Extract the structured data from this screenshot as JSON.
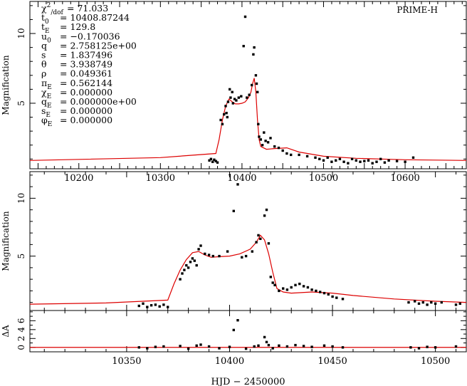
{
  "chart_data": [
    {
      "type": "scatter",
      "panel": "full light curve",
      "label": "PRIME-H",
      "ylabel": "Magnification",
      "xlim": [
        10140,
        10675
      ],
      "ylim": [
        0.3,
        12.3
      ],
      "x_ticks": [
        10200,
        10300,
        10400,
        10500,
        10600
      ],
      "y_ticks": [
        5,
        10
      ],
      "parameters": [
        {
          "name": "χ²/dof",
          "value": "= 71.033"
        },
        {
          "name": "t₀",
          "value": "= 10408.87244"
        },
        {
          "name": "tE",
          "value": "= 129.8"
        },
        {
          "name": "u₀",
          "value": "= −0.170036"
        },
        {
          "name": "q",
          "value": "= 2.758125e+00"
        },
        {
          "name": "s",
          "value": "= 1.837496"
        },
        {
          "name": "θ",
          "value": "= 3.938749"
        },
        {
          "name": "ρ",
          "value": "= 0.049361"
        },
        {
          "name": "πE",
          "value": "= 0.562144"
        },
        {
          "name": "χE",
          "value": "= 0.000000"
        },
        {
          "name": "qE",
          "value": "= 0.000000e+00"
        },
        {
          "name": "sE",
          "value": "= 0.000000"
        },
        {
          "name": "φE",
          "value": "= 0.000000"
        }
      ],
      "model_curve": {
        "x": [
          10140,
          10300,
          10368,
          10372,
          10376,
          10380,
          10384,
          10388,
          10392,
          10396,
          10400,
          10404,
          10408,
          10411,
          10413,
          10415,
          10417,
          10419,
          10421,
          10423,
          10430,
          10440,
          10455,
          10470,
          10500,
          10540,
          10600,
          10675
        ],
        "y": [
          0.9,
          1.1,
          1.4,
          2.4,
          3.8,
          4.8,
          5.3,
          5.1,
          4.95,
          4.95,
          5.0,
          5.1,
          5.4,
          5.8,
          6.4,
          6.8,
          5.8,
          3.8,
          2.4,
          1.9,
          1.7,
          1.75,
          1.8,
          1.5,
          1.2,
          1.05,
          0.95,
          0.9
        ]
      },
      "points": {
        "x": [
          10360,
          10362,
          10364,
          10366,
          10368,
          10370,
          10374,
          10376,
          10378,
          10380,
          10381,
          10382,
          10383,
          10385,
          10386,
          10388,
          10389,
          10391,
          10393,
          10396,
          10399,
          10402,
          10404,
          10406,
          10409,
          10412,
          10414,
          10415,
          10417,
          10418,
          10419,
          10420,
          10421,
          10423,
          10425,
          10427,
          10429,
          10432,
          10435,
          10440,
          10445,
          10450,
          10455,
          10460,
          10470,
          10480,
          10490,
          10495,
          10500,
          10505,
          10510,
          10515,
          10520,
          10525,
          10530,
          10535,
          10540,
          10545,
          10550,
          10555,
          10560,
          10565,
          10570,
          10575,
          10580,
          10590,
          10600,
          10610
        ],
        "y": [
          0.9,
          1.0,
          0.8,
          0.95,
          0.85,
          0.75,
          3.8,
          3.5,
          4.2,
          4.8,
          4.3,
          4.0,
          5.1,
          6.0,
          5.4,
          5.8,
          5.0,
          5.3,
          5.2,
          5.4,
          5.5,
          9.1,
          11.2,
          5.4,
          5.6,
          6.3,
          8.5,
          9.0,
          7.0,
          6.4,
          5.8,
          3.5,
          2.6,
          2.4,
          2.0,
          2.9,
          2.3,
          2.2,
          2.5,
          1.9,
          1.8,
          1.6,
          1.4,
          1.3,
          1.3,
          1.2,
          1.1,
          1.0,
          0.9,
          1.1,
          0.8,
          0.9,
          1.0,
          0.8,
          0.7,
          1.0,
          0.9,
          0.8,
          0.85,
          0.9,
          0.7,
          0.8,
          1.0,
          0.75,
          0.9,
          0.85,
          0.8,
          1.1
        ]
      }
    },
    {
      "type": "scatter",
      "panel": "zoom",
      "ylabel": "Magnification",
      "xlim": [
        10303,
        10515
      ],
      "ylim": [
        0.3,
        12.3
      ],
      "y_ticks": [
        5,
        10
      ],
      "model_curve": {
        "x": [
          10303,
          10340,
          10370,
          10373,
          10376,
          10379,
          10382,
          10385,
          10388,
          10391,
          10395,
          10400,
          10405,
          10410,
          10413,
          10415,
          10417,
          10419,
          10421,
          10423,
          10426,
          10430,
          10440,
          10450,
          10460,
          10480,
          10500,
          10515
        ],
        "y": [
          0.85,
          0.95,
          1.2,
          2.6,
          3.8,
          4.7,
          5.3,
          5.4,
          5.1,
          4.9,
          4.95,
          5.0,
          5.2,
          5.6,
          6.2,
          6.8,
          6.4,
          5.2,
          3.6,
          2.2,
          1.9,
          1.8,
          1.9,
          1.8,
          1.6,
          1.3,
          1.1,
          1.0
        ]
      },
      "points": {
        "x": [
          10356,
          10358,
          10360,
          10362,
          10364,
          10366,
          10368,
          10370,
          10376,
          10377,
          10378,
          10379,
          10380,
          10381,
          10382,
          10383,
          10384,
          10385,
          10386,
          10388,
          10390,
          10392,
          10395,
          10399,
          10402,
          10404,
          10406,
          10408,
          10411,
          10413,
          10414,
          10415,
          10417,
          10418,
          10419,
          10420,
          10421,
          10422,
          10424,
          10426,
          10428,
          10430,
          10432,
          10434,
          10436,
          10438,
          10440,
          10442,
          10444,
          10446,
          10448,
          10450,
          10452,
          10455,
          10487,
          10490,
          10492,
          10494,
          10496,
          10498,
          10500,
          10503,
          10510,
          10512
        ],
        "y": [
          0.7,
          0.9,
          0.6,
          0.75,
          0.8,
          0.65,
          0.8,
          0.6,
          3.0,
          3.5,
          3.8,
          4.2,
          4.0,
          4.5,
          4.8,
          4.6,
          4.2,
          5.6,
          5.9,
          5.2,
          5.1,
          5.0,
          5.0,
          5.4,
          8.9,
          11.2,
          4.9,
          5.0,
          5.4,
          6.2,
          6.8,
          6.5,
          8.5,
          9.0,
          6.1,
          3.2,
          2.7,
          2.5,
          2.0,
          2.2,
          2.1,
          2.3,
          2.5,
          2.6,
          2.4,
          2.3,
          2.1,
          2.0,
          1.9,
          1.8,
          1.7,
          1.5,
          1.4,
          1.3,
          1.0,
          1.1,
          0.9,
          1.0,
          0.8,
          1.0,
          0.9,
          1.0,
          0.8,
          0.9
        ]
      }
    },
    {
      "type": "scatter",
      "panel": "residuals",
      "ylabel": "ΔA",
      "xlabel": "HJD − 2450000",
      "xlim": [
        10303,
        10515
      ],
      "ylim": [
        -1,
        8.3
      ],
      "x_ticks": [
        10350,
        10400,
        10450,
        10500
      ],
      "y_ticks": [
        0,
        2,
        4,
        6
      ],
      "zero_line": 0,
      "points": {
        "x": [
          10356,
          10360,
          10364,
          10368,
          10376,
          10380,
          10384,
          10386,
          10390,
          10395,
          10400,
          10402,
          10404,
          10408,
          10412,
          10414,
          10417,
          10418,
          10419,
          10421,
          10424,
          10428,
          10432,
          10436,
          10440,
          10446,
          10450,
          10455,
          10488,
          10492,
          10496,
          10500,
          10510
        ],
        "y": [
          0.0,
          -0.2,
          0.1,
          0.2,
          0.3,
          -0.3,
          0.4,
          0.6,
          0.2,
          -0.2,
          0.1,
          3.9,
          6.1,
          -0.3,
          0.2,
          0.4,
          2.3,
          1.2,
          0.5,
          -0.2,
          0.4,
          0.2,
          0.5,
          0.3,
          0.1,
          0.4,
          0.2,
          0.0,
          0.0,
          -0.2,
          0.1,
          0.0,
          0.2
        ]
      }
    }
  ],
  "labels": {
    "top_params": [
      {
        "key": "χ",
        "sup": "2",
        "sub": "/dof",
        "value": "= 71.033"
      },
      {
        "key": "t",
        "sup": "",
        "sub": "0",
        "value": "= 10408.87244"
      },
      {
        "key": "t",
        "sup": "",
        "sub": "E",
        "value": "= 129.8"
      },
      {
        "key": "u",
        "sup": "",
        "sub": "0",
        "value": "= −0.170036"
      },
      {
        "key": "q",
        "sup": "",
        "sub": "",
        "value": "= 2.758125e+00"
      },
      {
        "key": "s",
        "sup": "",
        "sub": "",
        "value": "= 1.837496"
      },
      {
        "key": "θ",
        "sup": "",
        "sub": "",
        "value": "= 3.938749"
      },
      {
        "key": "ρ",
        "sup": "",
        "sub": "",
        "value": "= 0.049361"
      },
      {
        "key": "π",
        "sup": "",
        "sub": "E",
        "value": "= 0.562144"
      },
      {
        "key": "χ",
        "sup": "",
        "sub": "E",
        "value": "= 0.000000"
      },
      {
        "key": "q",
        "sup": "",
        "sub": "E",
        "value": "= 0.000000e+00"
      },
      {
        "key": "s",
        "sup": "",
        "sub": "E",
        "value": "= 0.000000"
      },
      {
        "key": "φ",
        "sup": "",
        "sub": "E",
        "value": "= 0.000000"
      }
    ]
  }
}
